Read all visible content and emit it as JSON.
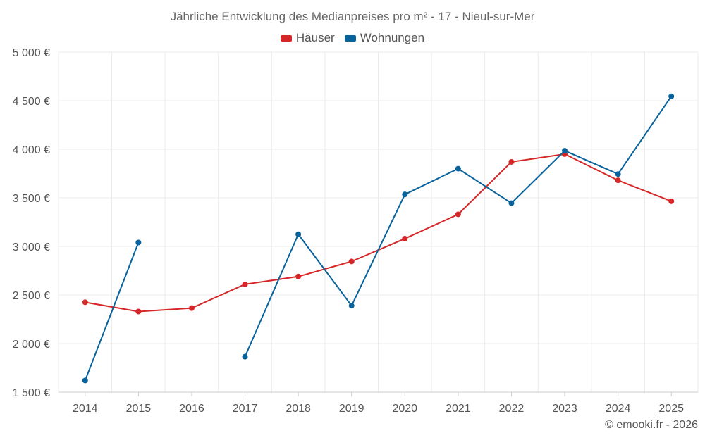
{
  "chart_data": {
    "type": "line",
    "title": "Jährliche Entwicklung des Medianpreises pro m² - 17 - Nieul-sur-Mer",
    "xlabel": "",
    "ylabel": "",
    "categories": [
      "2014",
      "2015",
      "2016",
      "2017",
      "2018",
      "2019",
      "2020",
      "2021",
      "2022",
      "2023",
      "2024",
      "2025"
    ],
    "y_ticks": [
      1500,
      2000,
      2500,
      3000,
      3500,
      4000,
      4500,
      5000
    ],
    "y_tick_labels": [
      "1 500 €",
      "2 000 €",
      "2 500 €",
      "3 000 €",
      "3 500 €",
      "4 000 €",
      "4 500 €",
      "5 000 €"
    ],
    "ylim": [
      1500,
      5000
    ],
    "grid": true,
    "legend_position": "top-center",
    "series": [
      {
        "name": "Häuser",
        "color": "#d62728",
        "values": [
          2425,
          2330,
          2365,
          2610,
          2690,
          2845,
          3080,
          3330,
          3870,
          3950,
          3680,
          3465
        ]
      },
      {
        "name": "Wohnungen",
        "color": "#08629b",
        "values": [
          1620,
          3040,
          null,
          1865,
          3125,
          2390,
          3535,
          3800,
          3445,
          3985,
          3745,
          4545
        ]
      }
    ]
  },
  "credit": "© emooki.fr - 2026"
}
